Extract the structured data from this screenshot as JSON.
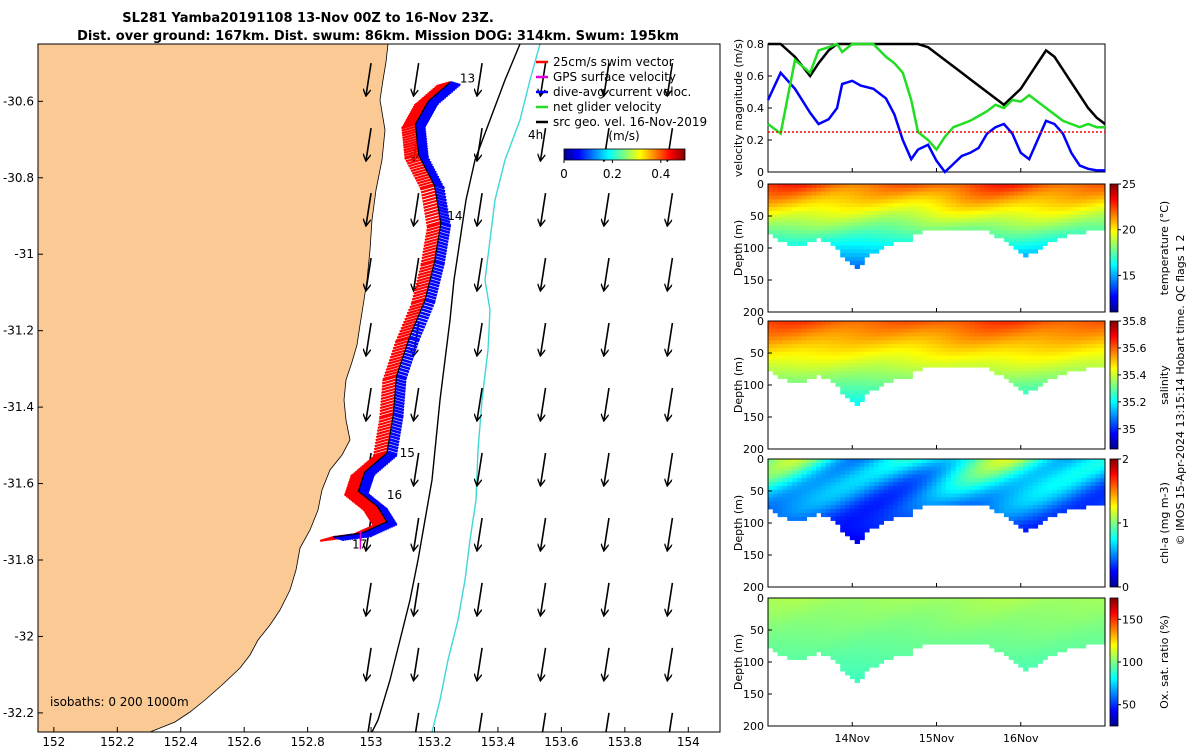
{
  "title_line1": "SL281 Yamba20191108 13-Nov 00Z to 16-Nov 23Z.",
  "title_line2": "Dist. over ground: 167km. Dist. swum: 86km. Mission DOG: 314km. Swum: 195km",
  "copyright": "© IMOS 15-Apr-2024 13:15:14 Hobart time. QC flags 1  2",
  "colors": {
    "land": "#fbc994",
    "track_red": "#ff0000",
    "track_blue": "#0000ff",
    "isobath_dark": "#000000",
    "isobath_cyan": "#3fd6d6",
    "gps": "#e000e0",
    "net_glider": "#22dd22",
    "swim_vector": "#ff0000"
  },
  "chart_data": [
    {
      "type": "map",
      "xlim": [
        151.95,
        154.1
      ],
      "ylim": [
        -32.25,
        -30.45
      ],
      "xticks": [
        "152",
        "152.2",
        "152.4",
        "152.6",
        "152.8",
        "153",
        "153.2",
        "153.4",
        "153.6",
        "153.8",
        "154"
      ],
      "yticks": [
        "-30.6",
        "-30.8",
        "-31",
        "-31.2",
        "-31.4",
        "-31.6",
        "-31.8",
        "-32",
        "-32.2"
      ],
      "day_labels": [
        {
          "text": "13",
          "lon": 153.28,
          "lat": -30.54
        },
        {
          "text": "14",
          "lon": 153.24,
          "lat": -30.9
        },
        {
          "text": "15",
          "lon": 153.09,
          "lat": -31.52
        },
        {
          "text": "16",
          "lon": 153.05,
          "lat": -31.63
        },
        {
          "text": "17",
          "lon": 152.94,
          "lat": -31.76
        }
      ],
      "label_4h": "4h",
      "legend": [
        {
          "label": "25cm/s swim vector",
          "color": "#ff0000"
        },
        {
          "label": "GPS surface velocity",
          "color": "#e000e0"
        },
        {
          "label": "dive-avg current veloc.",
          "color": "#0000ff"
        },
        {
          "label": "net glider velocity",
          "color": "#22dd22"
        },
        {
          "label": "src geo. vel. 16-Nov-2019",
          "color": "#000000"
        }
      ],
      "colorbar": {
        "title": "(m/s)",
        "ticks": [
          "0",
          "0.2",
          "0.4"
        ],
        "range": [
          0,
          0.5
        ],
        "colormap": "jet"
      },
      "isobath_text": "isobaths: 0   200   1000m",
      "track": [
        [
          153.25,
          -30.55
        ],
        [
          153.18,
          -30.6
        ],
        [
          153.14,
          -30.66
        ],
        [
          153.15,
          -30.74
        ],
        [
          153.2,
          -30.82
        ],
        [
          153.22,
          -30.92
        ],
        [
          153.2,
          -31.02
        ],
        [
          153.17,
          -31.12
        ],
        [
          153.12,
          -31.22
        ],
        [
          153.08,
          -31.32
        ],
        [
          153.07,
          -31.42
        ],
        [
          153.05,
          -31.52
        ],
        [
          152.98,
          -31.57
        ],
        [
          152.96,
          -31.62
        ],
        [
          153.02,
          -31.66
        ],
        [
          153.05,
          -31.7
        ],
        [
          152.97,
          -31.73
        ],
        [
          152.88,
          -31.74
        ]
      ],
      "vector_columns_lon": [
        153.0,
        153.15,
        153.35,
        153.55,
        153.75,
        153.95
      ]
    },
    {
      "type": "line",
      "ylabel": "velocity magnitude (m/s)",
      "ylim": [
        0,
        0.8
      ],
      "yticks": [
        "0",
        "0.2",
        "0.4",
        "0.6",
        "0.8"
      ],
      "x": [
        0,
        0.15,
        0.32,
        0.5,
        0.6,
        0.72,
        0.82,
        0.88,
        1.0,
        1.1,
        1.25,
        1.4,
        1.5,
        1.6,
        1.7,
        1.78,
        1.9,
        2.0,
        2.1,
        2.2,
        2.3,
        2.4,
        2.5,
        2.6,
        2.7,
        2.8,
        2.9,
        3.0,
        3.1,
        3.2,
        3.3,
        3.4,
        3.5,
        3.6,
        3.7,
        3.8,
        3.9,
        4.0
      ],
      "series": [
        {
          "color": "#000000",
          "values": [
            0.8,
            0.8,
            0.72,
            0.6,
            0.68,
            0.76,
            0.8,
            0.8,
            0.8,
            0.8,
            0.8,
            0.8,
            0.8,
            0.8,
            0.8,
            0.8,
            0.78,
            0.74,
            0.7,
            0.66,
            0.62,
            0.58,
            0.54,
            0.5,
            0.46,
            0.42,
            0.47,
            0.52,
            0.6,
            0.68,
            0.76,
            0.72,
            0.64,
            0.56,
            0.48,
            0.4,
            0.34,
            0.3
          ]
        },
        {
          "color": "#0000ff",
          "values": [
            0.45,
            0.62,
            0.52,
            0.37,
            0.3,
            0.33,
            0.4,
            0.55,
            0.57,
            0.54,
            0.52,
            0.46,
            0.36,
            0.2,
            0.08,
            0.14,
            0.17,
            0.07,
            0.0,
            0.05,
            0.1,
            0.12,
            0.15,
            0.24,
            0.28,
            0.3,
            0.24,
            0.12,
            0.08,
            0.2,
            0.32,
            0.3,
            0.24,
            0.12,
            0.04,
            0.02,
            0.01,
            0.01
          ]
        },
        {
          "color": "#22dd22",
          "values": [
            0.3,
            0.24,
            0.7,
            0.62,
            0.76,
            0.78,
            0.8,
            0.75,
            0.8,
            0.8,
            0.8,
            0.72,
            0.68,
            0.62,
            0.45,
            0.25,
            0.2,
            0.14,
            0.22,
            0.28,
            0.3,
            0.32,
            0.35,
            0.38,
            0.42,
            0.4,
            0.45,
            0.44,
            0.48,
            0.44,
            0.4,
            0.36,
            0.32,
            0.3,
            0.28,
            0.3,
            0.28,
            0.28
          ]
        },
        {
          "color": "#ff0000",
          "style": "dotted",
          "values": [
            0.25,
            0.25,
            0.25,
            0.25,
            0.25,
            0.25,
            0.25,
            0.25,
            0.25,
            0.25,
            0.25,
            0.25,
            0.25,
            0.25,
            0.25,
            0.25,
            0.25,
            0.25,
            0.25,
            0.25,
            0.25,
            0.25,
            0.25,
            0.25,
            0.25,
            0.25,
            0.25,
            0.25,
            0.25,
            0.25,
            0.25,
            0.25,
            0.25,
            0.25,
            0.25,
            0.25,
            0.25,
            0.25
          ]
        }
      ]
    },
    {
      "type": "heatmap",
      "ylabel": "Depth (m)",
      "cbar_label": "temperature (°C)",
      "ylim": [
        0,
        200
      ],
      "yticks": [
        "0",
        "50",
        "100",
        "150",
        "200"
      ],
      "clim": [
        11,
        25
      ],
      "cbar_ticks": [
        {
          "v": 15,
          "t": "15"
        },
        {
          "v": 20,
          "t": "20"
        },
        {
          "v": 25,
          "t": "25"
        }
      ],
      "surface": 22,
      "bottom": 14,
      "warm_patch": 24.5
    },
    {
      "type": "heatmap",
      "ylabel": "Depth (m)",
      "cbar_label": "salinity",
      "ylim": [
        0,
        200
      ],
      "yticks": [
        "0",
        "50",
        "100",
        "150",
        "200"
      ],
      "clim": [
        34.85,
        35.8
      ],
      "cbar_ticks": [
        {
          "v": 35.0,
          "t": "35"
        },
        {
          "v": 35.2,
          "t": "35.2"
        },
        {
          "v": 35.4,
          "t": "35.4"
        },
        {
          "v": 35.6,
          "t": "35.6"
        },
        {
          "v": 35.8,
          "t": "35.8"
        }
      ],
      "surface": 35.6,
      "bottom": 35.2,
      "warm_patch": 35.7
    },
    {
      "type": "heatmap",
      "ylabel": "Depth (m)",
      "cbar_label": "chl-a (mg m-3)",
      "ylim": [
        0,
        200
      ],
      "yticks": [
        "0",
        "50",
        "100",
        "150",
        "200"
      ],
      "clim": [
        0,
        2
      ],
      "cbar_ticks": [
        {
          "v": 0,
          "t": "0"
        },
        {
          "v": 1,
          "t": "1"
        },
        {
          "v": 2,
          "t": "2"
        }
      ],
      "surface": 0.8,
      "bottom": 0.2,
      "warm_patch": 1.9
    },
    {
      "type": "heatmap",
      "ylabel": "Depth (m)",
      "cbar_label": "Ox. sat. ratio (%)",
      "ylim": [
        0,
        200
      ],
      "yticks": [
        "0",
        "50",
        "100",
        "150",
        "200"
      ],
      "clim": [
        25,
        175
      ],
      "cbar_ticks": [
        {
          "v": 50,
          "t": "50"
        },
        {
          "v": 100,
          "t": "100"
        },
        {
          "v": 150,
          "t": "150"
        }
      ],
      "surface": 105,
      "bottom": 90,
      "warm_patch": 110
    }
  ],
  "time_axis": {
    "range_days": [
      0,
      4
    ],
    "ticks": [
      {
        "v": 1.0,
        "t": "14Nov"
      },
      {
        "v": 2.0,
        "t": "15Nov"
      },
      {
        "v": 3.0,
        "t": "16Nov"
      }
    ],
    "mission_bottom_m": [
      [
        0,
        70
      ],
      [
        0.2,
        90
      ],
      [
        0.4,
        95
      ],
      [
        0.6,
        82
      ],
      [
        0.8,
        95
      ],
      [
        0.95,
        118
      ],
      [
        1.05,
        128
      ],
      [
        1.2,
        110
      ],
      [
        1.4,
        95
      ],
      [
        1.55,
        85
      ],
      [
        1.65,
        90
      ],
      [
        1.75,
        75
      ],
      [
        1.9,
        68
      ],
      [
        2.0,
        72
      ],
      [
        2.2,
        70
      ],
      [
        2.4,
        68
      ],
      [
        2.6,
        72
      ],
      [
        2.8,
        85
      ],
      [
        2.95,
        100
      ],
      [
        3.05,
        112
      ],
      [
        3.2,
        100
      ],
      [
        3.4,
        85
      ],
      [
        3.6,
        75
      ],
      [
        3.8,
        72
      ],
      [
        4.0,
        70
      ]
    ]
  }
}
